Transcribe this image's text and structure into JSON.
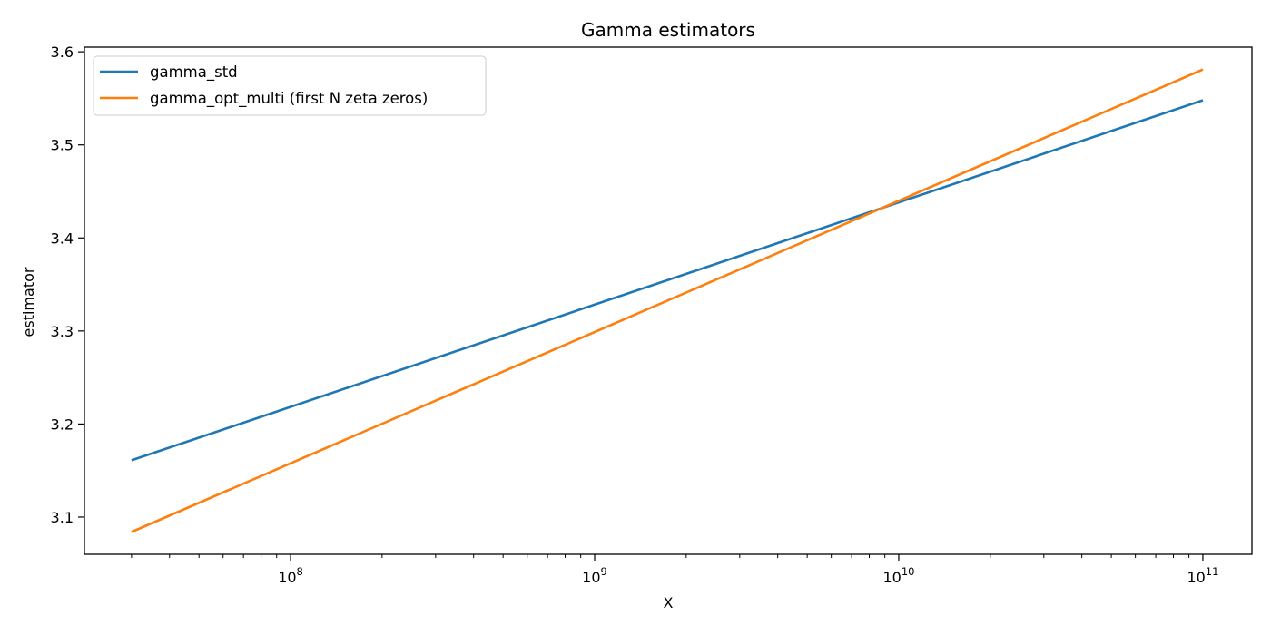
{
  "chart_data": {
    "type": "line",
    "title": "Gamma estimators",
    "xlabel": "X",
    "ylabel": "estimator",
    "xscale": "log",
    "xlim": [
      21000000.0,
      145000000000.0
    ],
    "ylim": [
      3.06,
      3.605
    ],
    "x_ticks": [
      {
        "value": 100000000.0,
        "base": "10",
        "exp": "8"
      },
      {
        "value": 1000000000.0,
        "base": "10",
        "exp": "9"
      },
      {
        "value": 10000000000.0,
        "base": "10",
        "exp": "10"
      },
      {
        "value": 100000000000.0,
        "base": "10",
        "exp": "11"
      }
    ],
    "y_ticks": [
      "3.1",
      "3.2",
      "3.3",
      "3.4",
      "3.5",
      "3.6"
    ],
    "grid": false,
    "legend_position": "top-left",
    "series": [
      {
        "name": "gamma_std",
        "color": "#1f77b4",
        "x": [
          30000000.0,
          100000000000.0
        ],
        "y": [
          3.161,
          3.548
        ]
      },
      {
        "name": "gamma_opt_multi (first N zeta zeros)",
        "color": "#ff7f0e",
        "x": [
          30000000.0,
          100000000000.0
        ],
        "y": [
          3.084,
          3.581
        ]
      }
    ]
  }
}
